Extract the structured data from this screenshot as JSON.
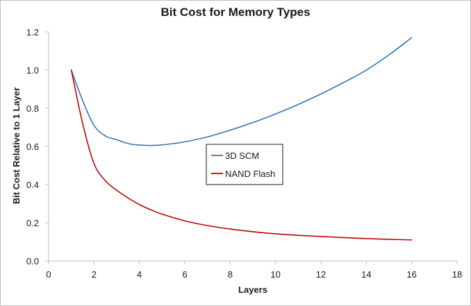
{
  "chart_data": {
    "type": "line",
    "title": "Bit Cost for Memory Types",
    "xlabel": "Layers",
    "ylabel": "Bit Cost Relative to 1 Layer",
    "xlim": [
      0,
      18
    ],
    "ylim": [
      0,
      1.2
    ],
    "xticks": [
      0,
      2,
      4,
      6,
      8,
      10,
      12,
      14,
      16,
      18
    ],
    "yticks": [
      "0.0",
      "0.2",
      "0.4",
      "0.6",
      "0.8",
      "1.0",
      "1.2"
    ],
    "grid": false,
    "legend_position": "center",
    "series": [
      {
        "name": "3D SCM",
        "color": "#2e75b6",
        "points": [
          [
            1,
            1.0
          ],
          [
            1.5,
            0.84
          ],
          [
            2,
            0.71
          ],
          [
            2.5,
            0.655
          ],
          [
            3,
            0.635
          ],
          [
            3.5,
            0.615
          ],
          [
            4,
            0.607
          ],
          [
            4.5,
            0.605
          ],
          [
            5,
            0.608
          ],
          [
            5.5,
            0.615
          ],
          [
            6,
            0.624
          ],
          [
            7,
            0.65
          ],
          [
            8,
            0.685
          ],
          [
            9,
            0.725
          ],
          [
            10,
            0.77
          ],
          [
            11,
            0.82
          ],
          [
            12,
            0.875
          ],
          [
            13,
            0.935
          ],
          [
            14,
            1.0
          ],
          [
            15,
            1.08
          ],
          [
            16,
            1.17
          ]
        ]
      },
      {
        "name": "NAND Flash",
        "color": "#c00000",
        "points": [
          [
            1,
            1.0
          ],
          [
            1.5,
            0.72
          ],
          [
            2,
            0.51
          ],
          [
            2.5,
            0.42
          ],
          [
            3,
            0.37
          ],
          [
            3.5,
            0.33
          ],
          [
            4,
            0.295
          ],
          [
            4.5,
            0.268
          ],
          [
            5,
            0.245
          ],
          [
            6,
            0.21
          ],
          [
            7,
            0.185
          ],
          [
            8,
            0.167
          ],
          [
            9,
            0.153
          ],
          [
            10,
            0.142
          ],
          [
            11,
            0.134
          ],
          [
            12,
            0.128
          ],
          [
            13,
            0.122
          ],
          [
            14,
            0.117
          ],
          [
            15,
            0.113
          ],
          [
            16,
            0.11
          ]
        ]
      }
    ]
  }
}
